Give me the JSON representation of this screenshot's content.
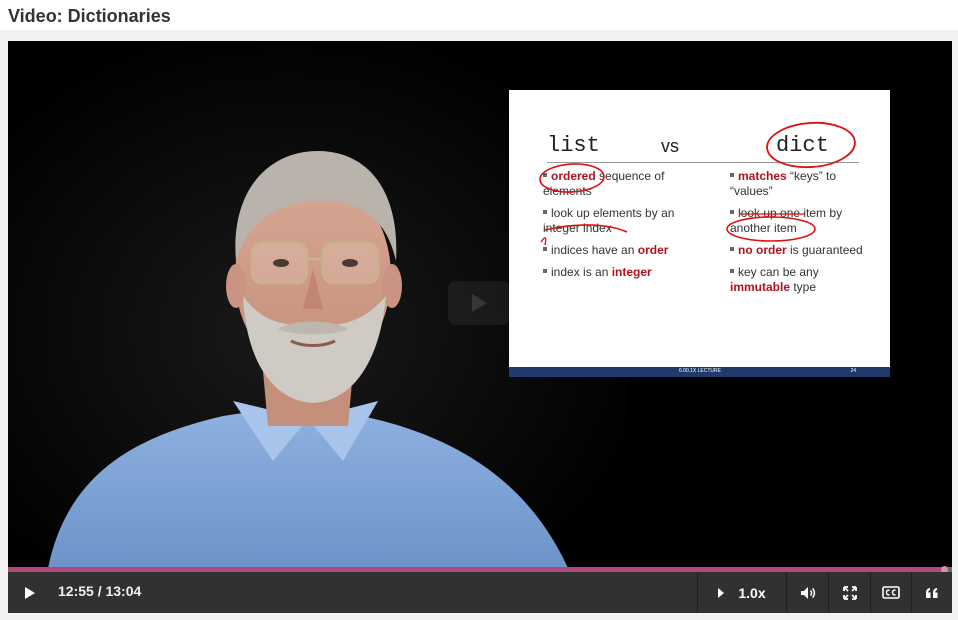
{
  "page": {
    "title": "Video: Dictionaries"
  },
  "slide": {
    "heading_left": "list",
    "heading_mid": "vs",
    "heading_right": "dict",
    "left_bullets": {
      "b1_hl": "ordered",
      "b1_rest": " sequence of",
      "b1_line2": "elements",
      "b2_line1": "look up elements by an",
      "b2_line2": "integer index",
      "b3_text": "indices have an ",
      "b3_hl": "order",
      "b4_text": "index is an ",
      "b4_hl": "integer"
    },
    "right_bullets": {
      "b1_hl": "matches",
      "b1_rest": " “keys” to",
      "b1_line2": "“values”",
      "b2_line1": "look up one item by",
      "b2_line2": "another item",
      "b3_hl": "no order",
      "b3_rest": " is guaranteed",
      "b4_line1": "key can be any",
      "b4_hl": "immutable",
      "b4_rest": " type"
    },
    "footer_label": "6.00.1X LECTURE",
    "page_number": "24"
  },
  "player": {
    "time_display": "12:55 / 13:04",
    "progress_fraction": 0.991,
    "speed": "1.0x",
    "colors": {
      "progress": "#b04a7a",
      "control_bar": "#313131",
      "slide_highlight": "#b3121f"
    }
  },
  "icons": {
    "play": "play-icon",
    "speed_arrow": "caret-right-icon",
    "volume": "volume-icon",
    "fullscreen": "fullscreen-icon",
    "captions": "closed-captions-icon",
    "transcript": "quote-icon"
  }
}
